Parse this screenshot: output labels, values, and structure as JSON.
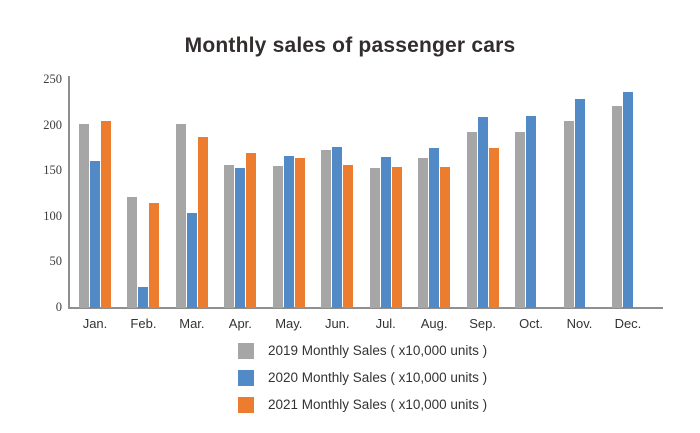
{
  "chart": {
    "title": "Monthly sales of passenger cars"
  },
  "chart_data": {
    "type": "bar",
    "title": "Monthly sales of passenger cars",
    "categories": [
      "Jan.",
      "Feb.",
      "Mar.",
      "Apr.",
      "May.",
      "Jun.",
      "Jul.",
      "Aug.",
      "Sep.",
      "Oct.",
      "Nov.",
      "Dec."
    ],
    "series": [
      {
        "name": "2019 Monthly Sales ( x10,000 units )",
        "color": "#a6a6a6",
        "values": [
          202,
          122,
          202,
          157,
          156,
          173,
          153,
          165,
          193,
          193,
          205,
          221
        ]
      },
      {
        "name": "2020 Monthly Sales ( x10,000 units )",
        "color": "#5289c7",
        "values": [
          161,
          23,
          104,
          153,
          167,
          177,
          166,
          175,
          209,
          211,
          229,
          237
        ]
      },
      {
        "name": "2021 Monthly Sales ( x10,000 units )",
        "color": "#ed7d2e",
        "values": [
          205,
          115,
          187,
          170,
          164,
          157,
          155,
          155,
          175,
          null,
          null,
          null
        ]
      }
    ],
    "xlabel": "",
    "ylabel": "",
    "ylim": [
      0,
      250
    ],
    "yticks": [
      0,
      50,
      100,
      150,
      200,
      250
    ],
    "grid": false,
    "legend_position": "bottom-left"
  }
}
